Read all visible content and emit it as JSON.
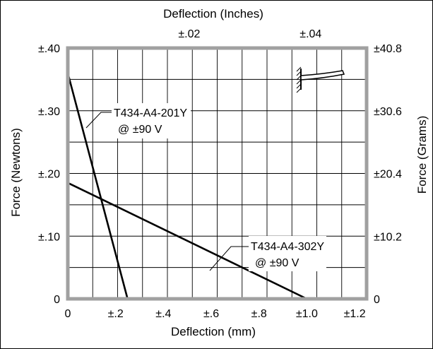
{
  "chart_data": {
    "type": "line",
    "xlabel": "Deflection  (mm)",
    "ylabel": "Force  (Newtons)",
    "x2label": "Deflection  (Inches)",
    "y2label": "Force  (Grams)",
    "xlim": [
      0,
      1.25
    ],
    "ylim": [
      0,
      0.4
    ],
    "x_ticks": [
      {
        "value": 0,
        "label": "0"
      },
      {
        "value": 0.2,
        "label": "±.2"
      },
      {
        "value": 0.4,
        "label": "±.4"
      },
      {
        "value": 0.6,
        "label": "±.6"
      },
      {
        "value": 0.8,
        "label": "±.8"
      },
      {
        "value": 1.0,
        "label": "±1.0"
      },
      {
        "value": 1.2,
        "label": "±1.2"
      }
    ],
    "y_ticks": [
      {
        "value": 0,
        "label": "0"
      },
      {
        "value": 0.1,
        "label": "±.10"
      },
      {
        "value": 0.2,
        "label": "±.20"
      },
      {
        "value": 0.3,
        "label": "±.30"
      },
      {
        "value": 0.4,
        "label": "±.40"
      }
    ],
    "x2_ticks": [
      {
        "value": 0.508,
        "label": "±.02"
      },
      {
        "value": 1.016,
        "label": "±.04"
      }
    ],
    "y2_ticks": [
      {
        "value": 0,
        "label": "0"
      },
      {
        "value": 0.1,
        "label": "±10.2"
      },
      {
        "value": 0.2,
        "label": "±20.4"
      },
      {
        "value": 0.3,
        "label": "±30.6"
      },
      {
        "value": 0.4,
        "label": "±40.8"
      }
    ],
    "grid": true,
    "series": [
      {
        "name": "T434-A4-201Y",
        "label_line2": "@ ±90 V",
        "points": [
          [
            0,
            0.36
          ],
          [
            0.25,
            0
          ]
        ]
      },
      {
        "name": "T434-A4-302Y",
        "label_line2": "@ ±90 V",
        "points": [
          [
            0,
            0.185
          ],
          [
            1.0,
            0
          ]
        ]
      }
    ]
  }
}
